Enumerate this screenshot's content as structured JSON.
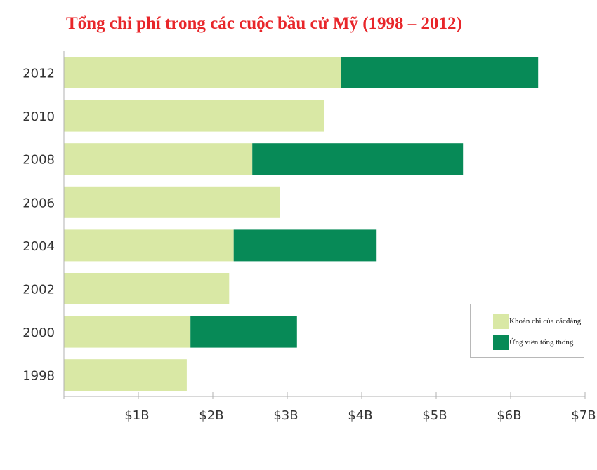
{
  "title": "Tổng chi phí trong các cuộc bầu cử Mỹ (1998 – 2012)",
  "colors": {
    "title": "#e8262a",
    "party": "#d9e8a5",
    "candidate": "#078a57",
    "axis": "#b0b0b0"
  },
  "legend": {
    "items": [
      {
        "label": "Khoản chi của cácđảng",
        "color": "#d9e8a5"
      },
      {
        "label": "Ứng viên tổng thống",
        "color": "#078a57"
      }
    ]
  },
  "chart_data": {
    "type": "bar",
    "orientation": "horizontal",
    "stacked": true,
    "title": "Tổng chi phí trong các cuộc bầu cử Mỹ (1998 – 2012)",
    "categories": [
      "2012",
      "2010",
      "2008",
      "2006",
      "2004",
      "2002",
      "2000",
      "1998"
    ],
    "series": [
      {
        "name": "Khoản chi của cácđảng",
        "color": "#d9e8a5",
        "values": [
          3.72,
          3.5,
          2.53,
          2.9,
          2.28,
          2.22,
          1.7,
          1.65
        ]
      },
      {
        "name": "Ứng viên tổng thống",
        "color": "#078a57",
        "values": [
          2.65,
          0,
          2.83,
          0,
          1.92,
          0,
          1.43,
          0
        ]
      }
    ],
    "x_ticks": [
      "$1B",
      "$2B",
      "$3B",
      "$4B",
      "$5B",
      "$6B",
      "$7B"
    ],
    "xlim": [
      0,
      7
    ],
    "xlabel": "",
    "ylabel": "",
    "grid": false,
    "legend_position": "bottom-right"
  }
}
